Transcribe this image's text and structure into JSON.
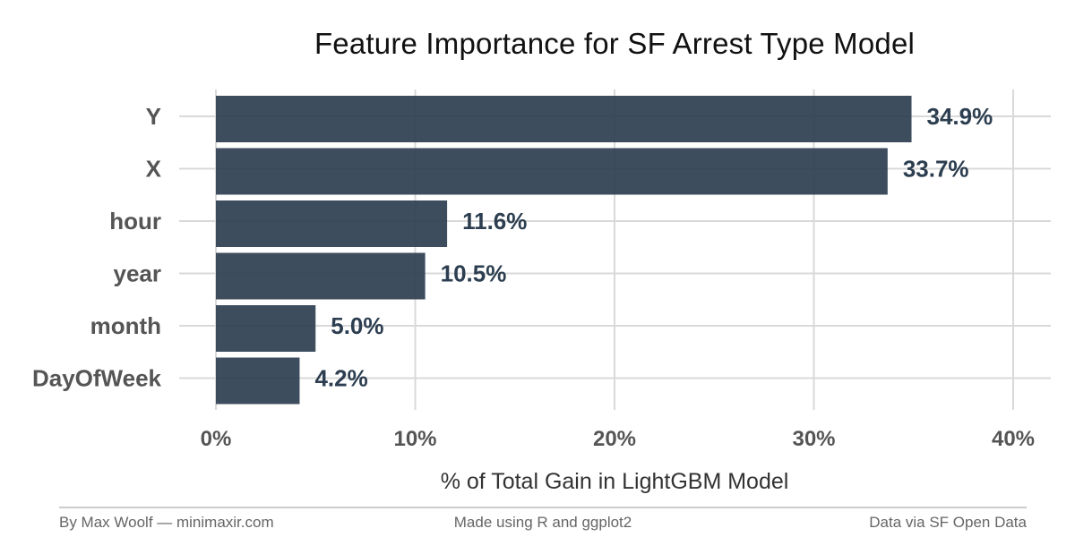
{
  "chart_data": {
    "type": "bar",
    "orientation": "horizontal",
    "title": "Feature Importance for SF Arrest Type Model",
    "xlabel": "% of Total Gain in LightGBM Model",
    "ylabel": "",
    "categories": [
      "Y",
      "X",
      "hour",
      "year",
      "month",
      "DayOfWeek"
    ],
    "values": [
      34.9,
      33.7,
      11.6,
      10.5,
      5.0,
      4.2
    ],
    "value_labels": [
      "34.9%",
      "33.7%",
      "11.6%",
      "10.5%",
      "5.0%",
      "4.2%"
    ],
    "xlim": [
      0,
      40
    ],
    "xticks": [
      0,
      10,
      20,
      30,
      40
    ],
    "xtick_labels": [
      "0%",
      "10%",
      "20%",
      "30%",
      "40%"
    ],
    "grid": true,
    "bar_color": "#2c3e50"
  },
  "footer": {
    "left": "By Max Woolf — minimaxir.com",
    "center": "Made using R and ggplot2",
    "right": "Data via SF Open Data"
  }
}
